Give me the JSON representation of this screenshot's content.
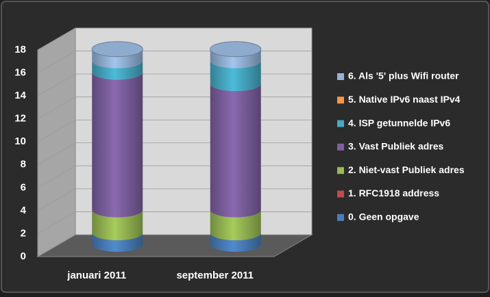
{
  "chart_data": {
    "type": "bar",
    "stacked": true,
    "categories": [
      "januari 2011",
      "september 2011"
    ],
    "series": [
      {
        "name": "0. Geen opgave",
        "color": "#4a7ebb",
        "values": [
          1,
          1
        ]
      },
      {
        "name": "1. RFC1918 address",
        "color": "#be4b48",
        "values": [
          0,
          0
        ]
      },
      {
        "name": "2. Niet-vast Publiek adres",
        "color": "#98b954",
        "values": [
          2,
          2
        ]
      },
      {
        "name": "3. Vast Publiek adres",
        "color": "#7d60a0",
        "values": [
          12,
          11
        ]
      },
      {
        "name": "4. ISP getunnelde IPv6",
        "color": "#46aac5",
        "values": [
          1,
          2
        ]
      },
      {
        "name": "5. Native IPv6 naast IPv4",
        "color": "#f79646",
        "values": [
          0,
          0
        ]
      },
      {
        "name": "6. Als '5' plus Wifi router",
        "color": "#95b3d7",
        "values": [
          1,
          1
        ]
      }
    ],
    "ylim": [
      0,
      18
    ],
    "yticks": [
      0,
      2,
      4,
      6,
      8,
      10,
      12,
      14,
      16,
      18
    ],
    "grid": true,
    "legend": "right"
  }
}
